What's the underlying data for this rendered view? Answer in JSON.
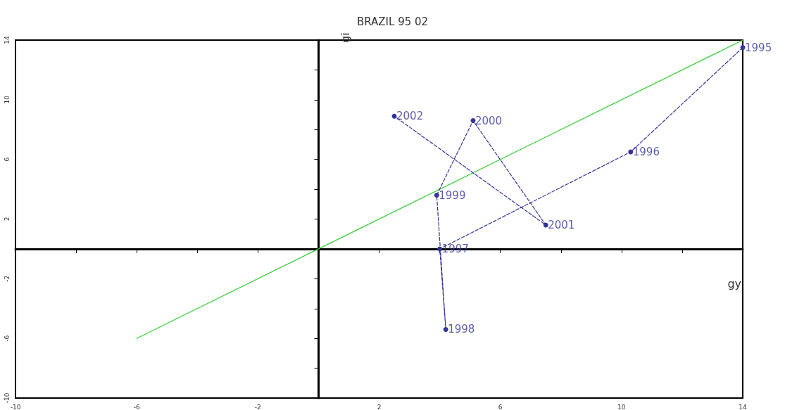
{
  "chart_data": {
    "type": "line",
    "title": "BRAZIL 95 02",
    "xlabel": "gy",
    "ylabel": "gi",
    "xlim": [
      -10,
      14
    ],
    "ylim": [
      -10,
      14
    ],
    "xticks": [
      -10,
      {
        "value": -8,
        "label": null
      },
      -6,
      {
        "value": -4,
        "label": null
      },
      -2,
      {
        "value": 0,
        "label": null
      },
      2,
      {
        "value": 4,
        "label": null
      },
      6,
      {
        "value": 8,
        "label": null
      },
      10,
      {
        "value": 12,
        "label": null
      },
      14
    ],
    "yticks": [
      -10,
      {
        "value": -8,
        "label": null
      },
      -6,
      {
        "value": -4,
        "label": null
      },
      -2,
      {
        "value": 0,
        "label": null
      },
      2,
      {
        "value": 4,
        "label": null
      },
      6,
      {
        "value": 8,
        "label": null
      },
      10,
      {
        "value": 12,
        "label": null
      },
      14
    ],
    "series": [
      {
        "color": "#34349a",
        "line_style": "dashed",
        "marker": "circle",
        "x": [
          14,
          10.3,
          4,
          4.2,
          3.9,
          5.1,
          7.5,
          2.5
        ],
        "values": [
          13.5,
          6.5,
          0,
          -5.4,
          3.6,
          8.6,
          1.6,
          8.9
        ]
      },
      {
        "color": "#33cc33",
        "line_style": "solid",
        "marker": "none",
        "x": [
          -6,
          14
        ],
        "values": [
          -6,
          14
        ]
      }
    ],
    "annotations": [
      {
        "text": "1995",
        "x": 14,
        "y": 13.5
      },
      {
        "text": "1996",
        "x": 10.3,
        "y": 6.5
      },
      {
        "text": "1997",
        "x": 4,
        "y": 0
      },
      {
        "text": "1998",
        "x": 4.2,
        "y": -5.4
      },
      {
        "text": "1999",
        "x": 3.9,
        "y": 3.6
      },
      {
        "text": "2000",
        "x": 5.1,
        "y": 8.6
      },
      {
        "text": "2001",
        "x": 7.5,
        "y": 1.6
      },
      {
        "text": "2002",
        "x": 2.5,
        "y": 8.9
      }
    ]
  }
}
